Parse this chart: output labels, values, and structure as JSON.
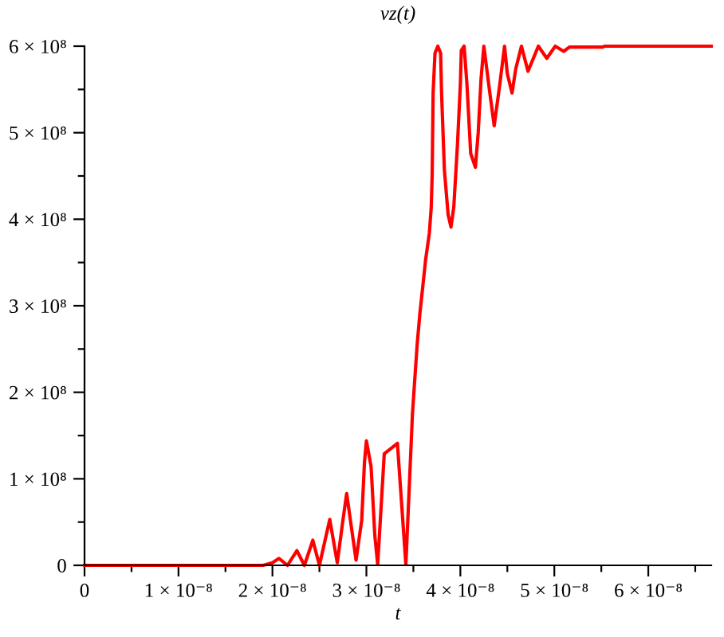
{
  "chart_data": {
    "type": "line",
    "title": "vz(t)",
    "xlabel": "t",
    "x": [
      0,
      1.9e-08,
      2e-08,
      2.07e-08,
      2.16e-08,
      2.26e-08,
      2.34e-08,
      2.43e-08,
      2.5e-08,
      2.61e-08,
      2.69e-08,
      2.75e-08,
      2.79e-08,
      2.83e-08,
      2.89e-08,
      2.95e-08,
      2.98e-08,
      3e-08,
      3.05e-08,
      3.09e-08,
      3.12e-08,
      3.19e-08,
      3.33e-08,
      3.42e-08,
      3.49e-08,
      3.54e-08,
      3.57e-08,
      3.6e-08,
      3.63e-08,
      3.67e-08,
      3.69e-08,
      3.7e-08,
      3.71e-08,
      3.73e-08,
      3.76e-08,
      3.79e-08,
      3.8e-08,
      3.83e-08,
      3.87e-08,
      3.9e-08,
      3.93e-08,
      3.97e-08,
      4e-08,
      4.01e-08,
      4.04e-08,
      4.07e-08,
      4.11e-08,
      4.16e-08,
      4.19e-08,
      4.22e-08,
      4.25e-08,
      4.31e-08,
      4.36e-08,
      4.42e-08,
      4.47e-08,
      4.5e-08,
      4.55e-08,
      4.59e-08,
      4.65e-08,
      4.72e-08,
      4.83e-08,
      4.92e-08,
      5.01e-08,
      5.1e-08,
      5.16e-08,
      5.52e-08,
      5.53e-08,
      6.67e-08
    ],
    "series": [
      {
        "color": "#ff0000",
        "values": [
          0,
          0,
          3000000.0,
          8000000.0,
          0,
          17000000.0,
          0,
          29000000.0,
          0,
          53000000.0,
          3000000.0,
          52000000.0,
          83000000.0,
          52000000.0,
          6000000.0,
          52000000.0,
          120000000.0,
          144000000.0,
          114000000.0,
          34000000.0,
          1000000.0,
          129000000.0,
          141000000.0,
          1000000.0,
          175000000.0,
          255000000.0,
          292000000.0,
          322000000.0,
          353000000.0,
          384000000.0,
          414000000.0,
          451000000.0,
          546000000.0,
          592000000.0,
          600000000.0,
          592000000.0,
          546000000.0,
          457000000.0,
          405000000.0,
          391000000.0,
          414000000.0,
          488000000.0,
          556000000.0,
          595000000.0,
          600000000.0,
          556000000.0,
          476000000.0,
          460000000.0,
          500000000.0,
          562000000.0,
          600000000.0,
          549000000.0,
          508000000.0,
          556000000.0,
          600000000.0,
          568000000.0,
          546000000.0,
          574000000.0,
          600000000.0,
          571000000.0,
          600000000.0,
          586000000.0,
          600000000.0,
          594000000.0,
          599000000.0,
          599000000.0,
          600000000.0,
          600000000.0
        ]
      }
    ],
    "xlim": [
      0,
      6.67e-08
    ],
    "ylim": [
      0,
      600000000.0
    ],
    "xticks": [
      0,
      {
        "value": 1e-08,
        "label": "1 × 10⁻⁸"
      },
      {
        "value": 2e-08,
        "label": "2 × 10⁻⁸"
      },
      {
        "value": 3e-08,
        "label": "3 × 10⁻⁸"
      },
      {
        "value": 4e-08,
        "label": "4 × 10⁻⁸"
      },
      {
        "value": 5e-08,
        "label": "5 × 10⁻⁸"
      },
      {
        "value": 6e-08,
        "label": "6 × 10⁻⁸"
      }
    ],
    "yticks": [
      0,
      {
        "value": 100000000.0,
        "label": "1 × 10⁸"
      },
      {
        "value": 200000000.0,
        "label": "2 × 10⁸"
      },
      {
        "value": 300000000.0,
        "label": "3 × 10⁸"
      },
      {
        "value": 400000000.0,
        "label": "4 × 10⁸"
      },
      {
        "value": 500000000.0,
        "label": "5 × 10⁸"
      },
      {
        "value": 600000000.0,
        "label": "6 × 10⁸"
      }
    ],
    "grid": false
  }
}
